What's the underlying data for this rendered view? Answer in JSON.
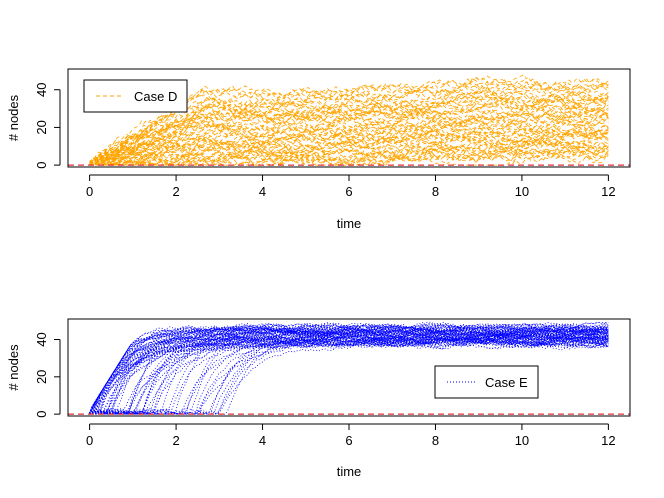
{
  "chart_data": [
    {
      "type": "line",
      "title": "",
      "xlabel": "time",
      "ylabel": "# nodes",
      "xlim": [
        -0.5,
        12.5
      ],
      "ylim": [
        -1,
        51
      ],
      "x_ticks": [
        0,
        2,
        4,
        6,
        8,
        10,
        12
      ],
      "y_ticks": [
        0,
        20,
        40
      ],
      "tick_labels_x": [
        "0",
        "2",
        "4",
        "6",
        "8",
        "10",
        "12"
      ],
      "tick_labels_y": [
        "0",
        "20",
        "40"
      ],
      "grid": false,
      "legend": {
        "position": "top-left",
        "entries": [
          {
            "label": "Case D",
            "color": "#FFA500",
            "line_style": "dashed"
          }
        ]
      },
      "reference_line": {
        "y": 0,
        "color": "#E0303A",
        "line_style": "dashed"
      },
      "series_style": {
        "color": "#FFA500",
        "line_style": "dashed"
      },
      "summary": {
        "x_range": [
          0,
          12
        ],
        "num_trajectories": 60,
        "envelope": [
          {
            "x": 0,
            "min": 0,
            "max": 1
          },
          {
            "x": 1,
            "min": 0,
            "max": 16
          },
          {
            "x": 2,
            "min": 0,
            "max": 30
          },
          {
            "x": 2.7,
            "min": 0,
            "max": 40
          },
          {
            "x": 4,
            "min": 0,
            "max": 38
          },
          {
            "x": 6,
            "min": 2,
            "max": 40
          },
          {
            "x": 8,
            "min": 3,
            "max": 42
          },
          {
            "x": 9.1,
            "min": 3,
            "max": 46
          },
          {
            "x": 10,
            "min": 3,
            "max": 43
          },
          {
            "x": 12,
            "min": 4,
            "max": 44
          }
        ]
      }
    },
    {
      "type": "line",
      "title": "",
      "xlabel": "time",
      "ylabel": "# nodes",
      "xlim": [
        -0.5,
        12.5
      ],
      "ylim": [
        -1,
        51
      ],
      "x_ticks": [
        0,
        2,
        4,
        6,
        8,
        10,
        12
      ],
      "y_ticks": [
        0,
        20,
        40
      ],
      "tick_labels_x": [
        "0",
        "2",
        "4",
        "6",
        "8",
        "10",
        "12"
      ],
      "tick_labels_y": [
        "0",
        "20",
        "40"
      ],
      "grid": false,
      "legend": {
        "position": "lower-right",
        "entries": [
          {
            "label": "Case E",
            "color": "#0000FF",
            "line_style": "dotted"
          }
        ]
      },
      "reference_line": {
        "y": 0,
        "color": "#E0303A",
        "line_style": "dashed"
      },
      "series_style": {
        "color": "#0000FF",
        "line_style": "dotted"
      },
      "summary": {
        "x_range": [
          0,
          12
        ],
        "num_trajectories": 90,
        "plateau": 42,
        "envelope": [
          {
            "x": 0,
            "min": 0,
            "max": 1
          },
          {
            "x": 1,
            "min": 0,
            "max": 38
          },
          {
            "x": 1.6,
            "min": 0,
            "max": 47
          },
          {
            "x": 3,
            "min": 1,
            "max": 48
          },
          {
            "x": 6,
            "min": 26,
            "max": 48
          },
          {
            "x": 8,
            "min": 34,
            "max": 49
          },
          {
            "x": 12,
            "min": 36,
            "max": 48
          }
        ]
      }
    }
  ]
}
